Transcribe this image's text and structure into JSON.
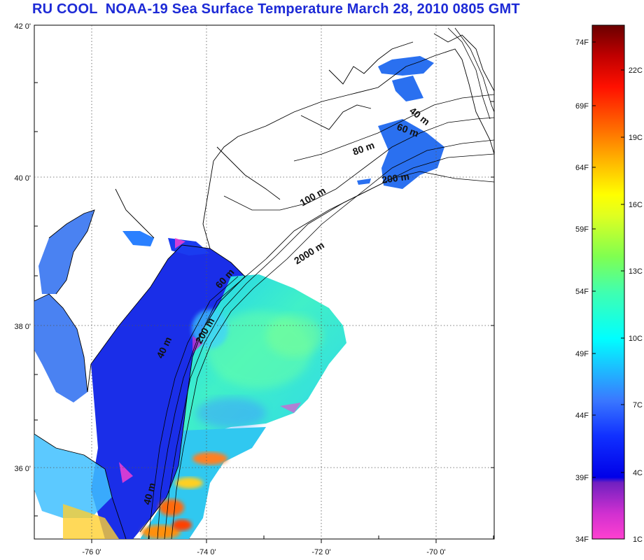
{
  "title": "RU COOL  NOAA-19 Sea Surface Temperature March 28, 2010 0805 GMT",
  "map": {
    "x_ticks": [
      "-76 0'",
      "-74 0'",
      "-72 0'",
      "-70 0'"
    ],
    "y_ticks": [
      "42 0'",
      "40 0'",
      "38 0'",
      "36 0'"
    ],
    "lon_range": [
      -77,
      -69
    ],
    "lat_range": [
      35,
      42
    ],
    "grid": "dotted",
    "land_color": "#ffffff",
    "no_data_color": "#ffffff"
  },
  "isobath_labels": [
    "40 m",
    "60 m",
    "80 m",
    "200 m",
    "100 m",
    "2000 m",
    "60 m",
    "200 m",
    "40 m",
    "40 m"
  ],
  "colorbar": {
    "fahrenheit": [
      "74F",
      "69F",
      "64F",
      "59F",
      "54F",
      "49F",
      "44F",
      "39F",
      "34F"
    ],
    "celsius": [
      "22C",
      "19C",
      "16C",
      "13C",
      "10C",
      "7C",
      "4C",
      "1C"
    ],
    "colors": [
      "#7a0000",
      "#e00000",
      "#ff6a00",
      "#ffff00",
      "#78ff50",
      "#00ffff",
      "#3060ff",
      "#0000e8",
      "#9020c0",
      "#ff40d0"
    ]
  }
}
